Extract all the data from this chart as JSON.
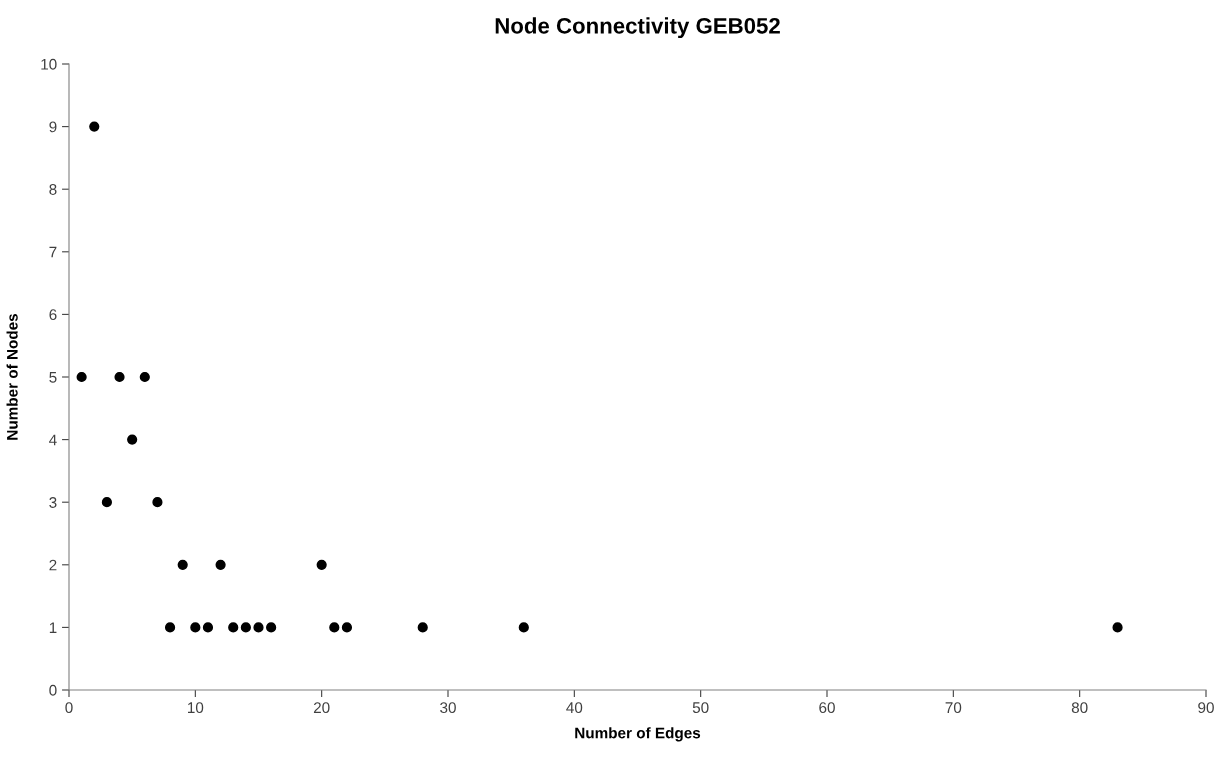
{
  "chart_data": {
    "type": "scatter",
    "title": "Node Connectivity GEB052",
    "xlabel": "Number of Edges",
    "ylabel": "Number of Nodes",
    "x": [
      1,
      2,
      3,
      4,
      5,
      6,
      7,
      8,
      9,
      10,
      11,
      12,
      13,
      14,
      15,
      16,
      20,
      21,
      22,
      28,
      36,
      83
    ],
    "series": [
      {
        "color": "#000000",
        "values": [
          5,
          9,
          3,
          5,
          4,
          5,
          3,
          1,
          2,
          1,
          1,
          2,
          1,
          1,
          1,
          1,
          2,
          1,
          1,
          1,
          1,
          1
        ]
      }
    ],
    "xlim": [
      0,
      90
    ],
    "xticks": [
      0,
      10,
      20,
      30,
      40,
      50,
      60,
      70,
      80,
      90
    ],
    "ylim": [
      0,
      10
    ],
    "yticks": [
      0,
      1,
      2,
      3,
      4,
      5,
      6,
      7,
      8,
      9,
      10
    ],
    "grid": false,
    "marker": "circle"
  }
}
